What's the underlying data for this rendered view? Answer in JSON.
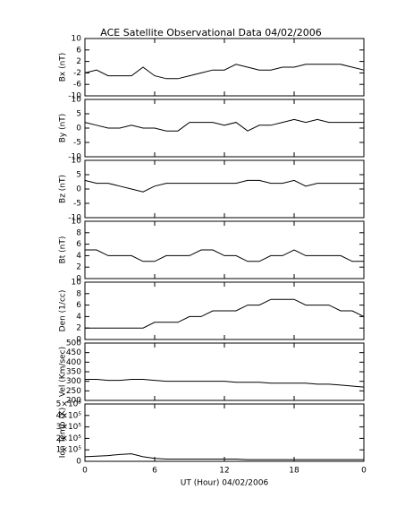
{
  "chart_data": [
    {
      "type": "line",
      "title": "ACE Satellite Observational Data   04/02/2006",
      "ylabel": "Bx (nT)",
      "color": "#000000",
      "x": [
        0,
        1,
        2,
        3,
        4,
        5,
        6,
        7,
        8,
        9,
        10,
        11,
        12,
        13,
        14,
        15,
        16,
        17,
        18,
        19,
        20,
        21,
        22,
        23,
        24
      ],
      "values": [
        -2,
        -1,
        -3,
        -3,
        -3,
        0,
        -3,
        -4,
        -4,
        -3,
        -2,
        -1,
        -1,
        1,
        0,
        -1,
        -1,
        0,
        0,
        1,
        1,
        1,
        1,
        0,
        -1
      ],
      "xlim": [
        0,
        24
      ],
      "ylim": [
        -10,
        10
      ],
      "yticks": [
        -10,
        -6,
        -2,
        2,
        6,
        10
      ]
    },
    {
      "type": "line",
      "ylabel": "By (nT)",
      "color": "#000000",
      "x": [
        0,
        1,
        2,
        3,
        4,
        5,
        6,
        7,
        8,
        9,
        10,
        11,
        12,
        13,
        14,
        15,
        16,
        17,
        18,
        19,
        20,
        21,
        22,
        23,
        24
      ],
      "values": [
        2,
        1,
        0,
        0,
        1,
        0,
        0,
        -1,
        -1,
        2,
        2,
        2,
        1,
        2,
        -1,
        1,
        1,
        2,
        3,
        2,
        3,
        2,
        2,
        2,
        2
      ],
      "xlim": [
        0,
        24
      ],
      "ylim": [
        -10,
        10
      ],
      "yticks": [
        -10,
        -5,
        0,
        5,
        10
      ]
    },
    {
      "type": "line",
      "ylabel": "Bz (nT)",
      "color": "#000000",
      "x": [
        0,
        1,
        2,
        3,
        4,
        5,
        6,
        7,
        8,
        9,
        10,
        11,
        12,
        13,
        14,
        15,
        16,
        17,
        18,
        19,
        20,
        21,
        22,
        23,
        24
      ],
      "values": [
        3,
        2,
        2,
        1,
        0,
        -1,
        1,
        2,
        2,
        2,
        2,
        2,
        2,
        2,
        3,
        3,
        2,
        2,
        3,
        1,
        2,
        2,
        2,
        2,
        2
      ],
      "xlim": [
        0,
        24
      ],
      "ylim": [
        -10,
        10
      ],
      "yticks": [
        -10,
        -5,
        0,
        5,
        10
      ]
    },
    {
      "type": "line",
      "ylabel": "Bt (nT)",
      "color": "#000000",
      "x": [
        0,
        1,
        2,
        3,
        4,
        5,
        6,
        7,
        8,
        9,
        10,
        11,
        12,
        13,
        14,
        15,
        16,
        17,
        18,
        19,
        20,
        21,
        22,
        23,
        24
      ],
      "values": [
        5,
        5,
        4,
        4,
        4,
        3,
        3,
        4,
        4,
        4,
        5,
        5,
        4,
        4,
        3,
        3,
        4,
        4,
        5,
        4,
        4,
        4,
        4,
        3,
        3
      ],
      "xlim": [
        0,
        24
      ],
      "ylim": [
        0,
        10
      ],
      "yticks": [
        0,
        2,
        4,
        6,
        8,
        10
      ]
    },
    {
      "type": "line",
      "ylabel": "Den (1/cc)",
      "color": "#000000",
      "x": [
        0,
        1,
        2,
        3,
        4,
        5,
        6,
        7,
        8,
        9,
        10,
        11,
        12,
        13,
        14,
        15,
        16,
        17,
        18,
        19,
        20,
        21,
        22,
        23,
        24
      ],
      "values": [
        2,
        2,
        2,
        2,
        2,
        2,
        3,
        3,
        3,
        4,
        4,
        5,
        5,
        5,
        6,
        6,
        7,
        7,
        7,
        6,
        6,
        6,
        5,
        5,
        4
      ],
      "xlim": [
        0,
        24
      ],
      "ylim": [
        0,
        10
      ],
      "yticks": [
        0,
        2,
        4,
        6,
        8,
        10
      ]
    },
    {
      "type": "line",
      "ylabel": "Vel (Km/sec)",
      "color": "#000000",
      "x": [
        0,
        1,
        2,
        3,
        4,
        5,
        6,
        7,
        8,
        9,
        10,
        11,
        12,
        13,
        14,
        15,
        16,
        17,
        18,
        19,
        20,
        21,
        22,
        23,
        24
      ],
      "values": [
        310,
        310,
        305,
        305,
        310,
        310,
        305,
        300,
        300,
        300,
        300,
        300,
        300,
        295,
        295,
        295,
        290,
        290,
        290,
        290,
        285,
        285,
        280,
        275,
        270
      ],
      "xlim": [
        0,
        24
      ],
      "ylim": [
        200,
        500
      ],
      "yticks": [
        200,
        250,
        300,
        350,
        400,
        450,
        500
      ]
    },
    {
      "type": "line",
      "ylabel": "Ion Temp (K)",
      "xlabel": "UT (Hour)  04/02/2006",
      "color": "#000000",
      "x": [
        0,
        1,
        2,
        3,
        4,
        5,
        6,
        7,
        8,
        9,
        10,
        11,
        12,
        13,
        14,
        15,
        16,
        17,
        18,
        19,
        20,
        21,
        22,
        23,
        24
      ],
      "values": [
        40000,
        45000,
        50000,
        60000,
        65000,
        40000,
        25000,
        20000,
        20000,
        20000,
        20000,
        20000,
        20000,
        20000,
        15000,
        15000,
        15000,
        15000,
        15000,
        15000,
        15000,
        15000,
        15000,
        15000,
        15000
      ],
      "xlim": [
        0,
        24
      ],
      "ylim": [
        0,
        500000
      ],
      "yticks": [
        0,
        {
          "value": 100000,
          "label": "1×10⁵"
        },
        {
          "value": 200000,
          "label": "2×10⁵"
        },
        {
          "value": 300000,
          "label": "3×10⁵"
        },
        {
          "value": 400000,
          "label": "4×10⁵"
        },
        {
          "value": 500000,
          "label": "5×10⁵"
        }
      ],
      "xticks": [
        0,
        6,
        12,
        18,
        {
          "value": 24,
          "label": "0"
        }
      ]
    }
  ]
}
